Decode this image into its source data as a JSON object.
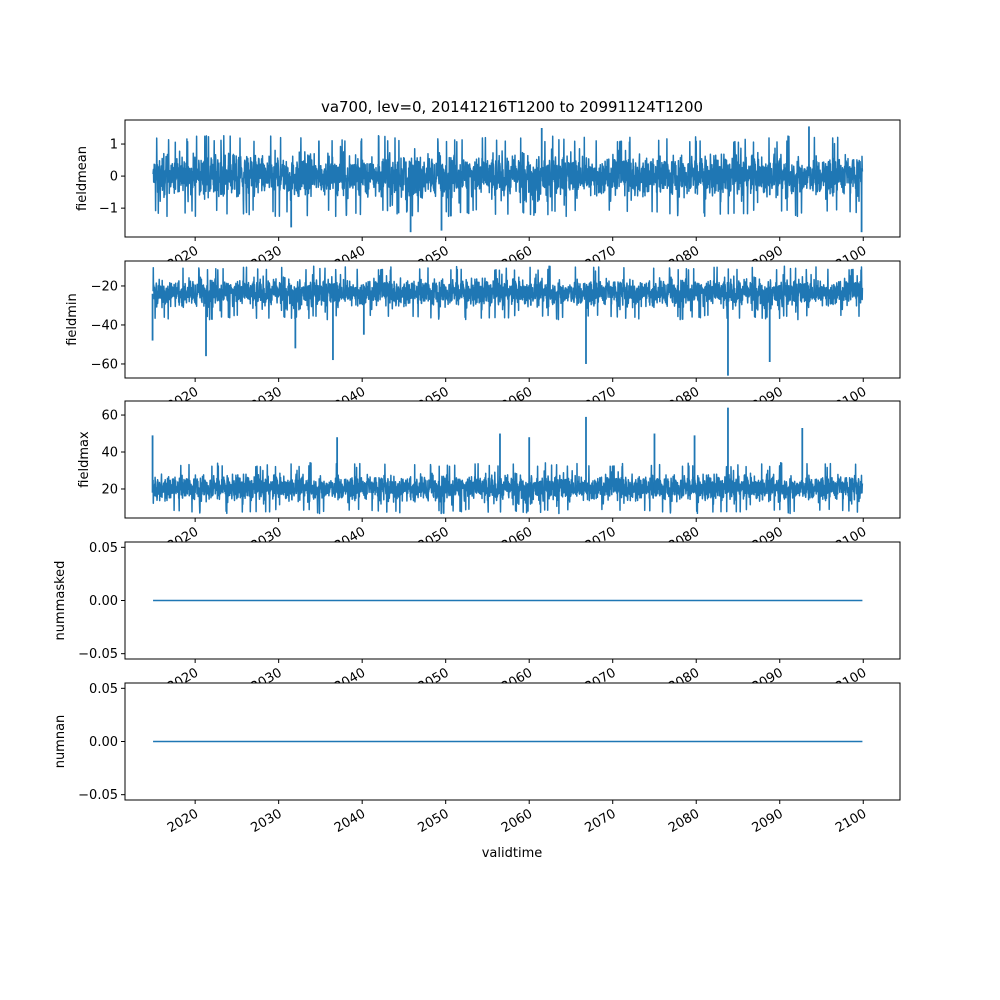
{
  "chart_data": [
    {
      "type": "line",
      "title": "va700, lev=0, 20141216T1200 to 20991124T1200",
      "ylabel": "fieldmean",
      "xlabel": "",
      "xlim": [
        2011.6,
        2104.4
      ],
      "ylim": [
        -1.9,
        1.75
      ],
      "yticks": [
        1,
        0,
        -1
      ],
      "ytick_labels": [
        "1",
        "0",
        "−1"
      ],
      "x_range": [
        2014.96,
        2099.9
      ],
      "typical_range": [
        -1.05,
        1.05
      ],
      "center": 0,
      "spikes": [
        [
          2045.8,
          -1.75
        ],
        [
          2049.5,
          -1.7
        ],
        [
          2061.5,
          1.5
        ],
        [
          2093.5,
          1.55
        ],
        [
          2099.8,
          -1.75
        ],
        [
          2031.5,
          -1.6
        ]
      ]
    },
    {
      "type": "line",
      "ylabel": "fieldmin",
      "xlim": [
        2011.6,
        2104.4
      ],
      "ylim": [
        -67.2,
        -7.2
      ],
      "yticks": [
        -20,
        -40,
        -60
      ],
      "ytick_labels": [
        "−20",
        "−40",
        "−60"
      ],
      "x_range": [
        2014.96,
        2099.9
      ],
      "typical_range": [
        -35,
        -12
      ],
      "center": -24,
      "spikes": [
        [
          2014.9,
          -48
        ],
        [
          2021.3,
          -56
        ],
        [
          2032.0,
          -52
        ],
        [
          2036.5,
          -58
        ],
        [
          2066.8,
          -60
        ],
        [
          2083.8,
          -66
        ],
        [
          2088.8,
          -59
        ],
        [
          2040.2,
          -45
        ]
      ]
    },
    {
      "type": "line",
      "ylabel": "fieldmax",
      "xlim": [
        2011.6,
        2104.4
      ],
      "ylim": [
        4.3,
        67.6
      ],
      "yticks": [
        60,
        40,
        20
      ],
      "ytick_labels": [
        "60",
        "40",
        "20"
      ],
      "x_range": [
        2014.96,
        2099.9
      ],
      "typical_range": [
        9,
        32
      ],
      "center": 18,
      "spikes": [
        [
          2014.9,
          49
        ],
        [
          2056.5,
          50
        ],
        [
          2060.0,
          48
        ],
        [
          2066.8,
          59
        ],
        [
          2075.0,
          50
        ],
        [
          2079.8,
          49
        ],
        [
          2083.8,
          64
        ],
        [
          2092.7,
          53
        ],
        [
          2037.0,
          48
        ]
      ]
    },
    {
      "type": "line",
      "ylabel": "nummasked",
      "xlim": [
        2011.6,
        2104.4
      ],
      "ylim": [
        -0.055,
        0.055
      ],
      "yticks": [
        0.05,
        0,
        -0.05
      ],
      "ytick_labels": [
        "0.05",
        "0.00",
        "−0.05"
      ],
      "x_range": [
        2014.96,
        2099.9
      ],
      "constant": 0
    },
    {
      "type": "line",
      "ylabel": "numnan",
      "xlabel": "validtime",
      "xlim": [
        2011.6,
        2104.4
      ],
      "ylim": [
        -0.055,
        0.055
      ],
      "yticks": [
        0.05,
        0,
        -0.05
      ],
      "ytick_labels": [
        "0.05",
        "0.00",
        "−0.05"
      ],
      "x_range": [
        2014.96,
        2099.9
      ],
      "constant": 0
    }
  ],
  "xticks": [
    2020,
    2030,
    2040,
    2050,
    2060,
    2070,
    2080,
    2090,
    2100
  ],
  "xtick_labels": [
    "2020",
    "2030",
    "2040",
    "2050",
    "2060",
    "2070",
    "2080",
    "2090",
    "2100"
  ],
  "line_color": "#1f77b4"
}
